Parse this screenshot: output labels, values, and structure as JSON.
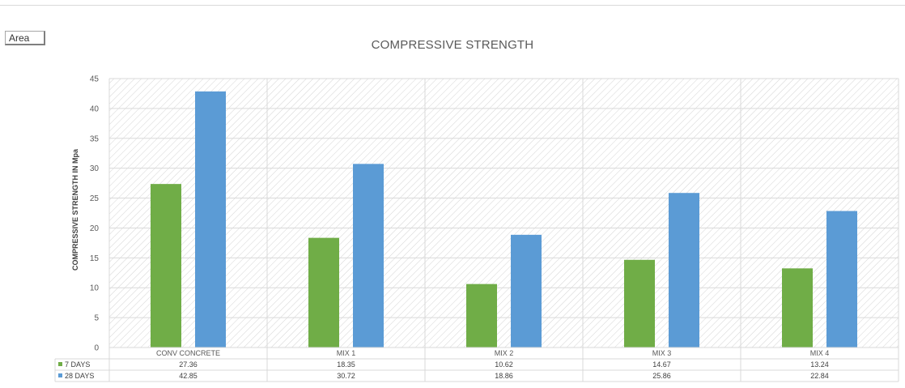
{
  "toolbar": {
    "area_label": "Area"
  },
  "chart_data": {
    "type": "bar",
    "title": "COMPRESSIVE STRENGTH",
    "xlabel": "",
    "ylabel": "COMPRESSIVE STRENGTH IN Mpa",
    "categories": [
      "CONV CONCRETE",
      "MIX 1",
      "MIX 2",
      "MIX 3",
      "MIX 4"
    ],
    "series": [
      {
        "name": "7 DAYS",
        "color": "#70ad47",
        "values": [
          27.36,
          18.35,
          10.62,
          14.67,
          13.24
        ],
        "labels": [
          "27.36",
          "18.35",
          "10.62",
          "14.67",
          "13.24"
        ]
      },
      {
        "name": "28 DAYS",
        "color": "#5b9bd5",
        "values": [
          42.85,
          30.72,
          18.86,
          25.86,
          22.84
        ],
        "labels": [
          "42.85",
          "30.72",
          "18.86",
          "25.86",
          "22.84"
        ]
      }
    ],
    "ylim": [
      0,
      45
    ],
    "yticks": [
      0,
      5,
      10,
      15,
      20,
      25,
      30,
      35,
      40,
      45
    ],
    "grid": true,
    "data_table": true,
    "legend": "data-table"
  }
}
